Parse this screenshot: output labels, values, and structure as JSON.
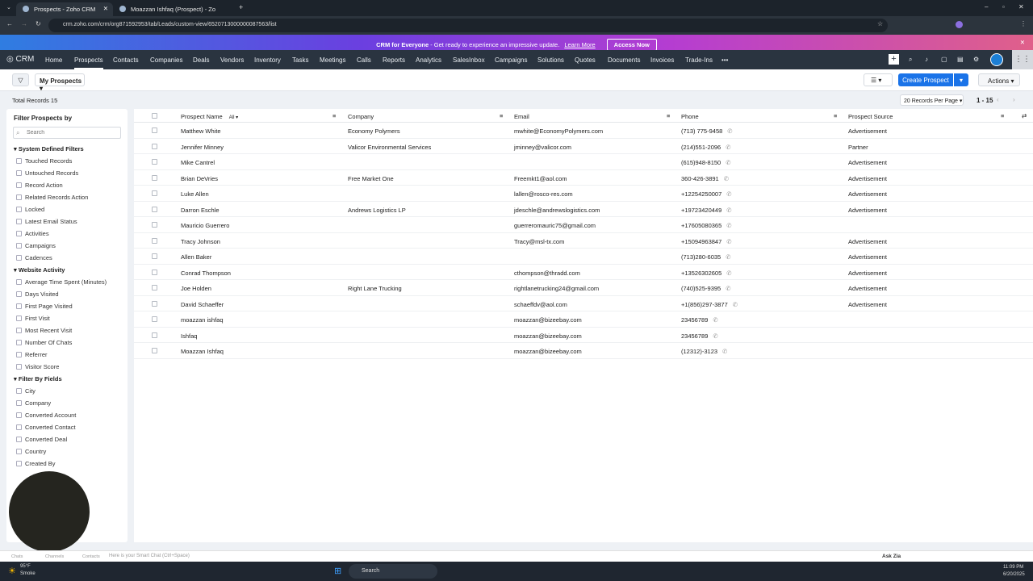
{
  "browser": {
    "tabs": [
      {
        "title": "Prospects - Zoho CRM",
        "active": true
      },
      {
        "title": "Moazzan Ishfaq (Prospect) - Zo",
        "active": false
      }
    ],
    "url": "crm.zoho.com/crm/org871592953/tab/Leads/custom-view/6520713000000087563/list"
  },
  "banner": {
    "title": "CRM for Everyone",
    "text": " - Get ready to experience an impressive update.",
    "link": "Learn More",
    "button": "Access Now"
  },
  "nav": {
    "logo": "CRM",
    "items": [
      "Home",
      "Prospects",
      "Contacts",
      "Companies",
      "Deals",
      "Vendors",
      "Inventory",
      "Tasks",
      "Meetings",
      "Calls",
      "Reports",
      "Analytics",
      "SalesInbox",
      "Campaigns",
      "Solutions",
      "Quotes",
      "Documents",
      "Invoices",
      "Trade-Ins",
      "•••"
    ],
    "active": "Prospects"
  },
  "toolbar": {
    "view": "My Prospects",
    "create": "Create Prospect",
    "actions": "Actions",
    "total": "Total Records 15",
    "per_page": "20 Records Per Page",
    "range": "1 - 15"
  },
  "sidebar": {
    "title": "Filter Prospects by",
    "search_placeholder": "Search",
    "sections": [
      {
        "title": "System Defined Filters",
        "items": [
          "Touched Records",
          "Untouched Records",
          "Record Action",
          "Related Records Action",
          "Locked",
          "Latest Email Status",
          "Activities",
          "Campaigns",
          "Cadences"
        ]
      },
      {
        "title": "Website Activity",
        "items": [
          "Average Time Spent (Minutes)",
          "Days Visited",
          "First Page Visited",
          "First Visit",
          "Most Recent Visit",
          "Number Of Chats",
          "Referrer",
          "Visitor Score"
        ]
      },
      {
        "title": "Filter By Fields",
        "items": [
          "City",
          "Company",
          "Converted Account",
          "Converted Contact",
          "Converted Deal",
          "Country",
          "Created By"
        ]
      }
    ]
  },
  "table": {
    "columns": [
      "Prospect Name",
      "Company",
      "Email",
      "Phone",
      "Prospect Source"
    ],
    "name_filter": "All",
    "rows": [
      [
        "Matthew White",
        "Economy Polymers",
        "mwhite@EconomyPolymers.com",
        "(713) 775-9458",
        "Advertisement"
      ],
      [
        "Jennifer Minney",
        "Valicor Environmental Services",
        "jminney@valicor.com",
        "(214)551-2096",
        "Partner"
      ],
      [
        "Mike Cantrel",
        "",
        "",
        "(615)948-8150",
        "Advertisement"
      ],
      [
        "Brian DeVries",
        "Free Market One",
        "Freemkt1@aol.com",
        "360-426-3891",
        "Advertisement"
      ],
      [
        "Luke Allen",
        "",
        "lallen@rosco-res.com",
        "+12254250007",
        "Advertisement"
      ],
      [
        "Darron Eschle",
        "Andrews Logistics LP",
        "jdeschle@andrewslogistics.com",
        "+19723420449",
        "Advertisement"
      ],
      [
        "Mauricio Guerrero",
        "",
        "guerreromauric75@gmail.com",
        "+17605080365",
        ""
      ],
      [
        "Tracy Johnson",
        "",
        "Tracy@msl-tx.com",
        "+15094963847",
        "Advertisement"
      ],
      [
        "Allen Baker",
        "",
        "",
        "(713)280-6035",
        "Advertisement"
      ],
      [
        "Conrad Thompson",
        "",
        "cthompson@thradd.com",
        "+13526302605",
        "Advertisement"
      ],
      [
        "Joe Holden",
        "Right Lane Trucking",
        "rightlanetrucking24@gmail.com",
        "(740)525-9395",
        "Advertisement"
      ],
      [
        "David Schaeffer",
        "",
        "schaeffdv@aol.com",
        "+1(856)297-3877",
        "Advertisement"
      ],
      [
        "moazzan ishfaq",
        "",
        "moazzan@bizeebay.com",
        "23456789",
        ""
      ],
      [
        "Ishfaq",
        "",
        "moazzan@bizeebay.com",
        "23456789",
        ""
      ],
      [
        "Moazzan Ishfaq",
        "",
        "moazzan@bizeebay.com",
        "(12312)-3123",
        ""
      ]
    ]
  },
  "chatbar": {
    "placeholder": "Here is your Smart Chat (Ctrl+Space)",
    "items": [
      "Chats",
      "Channels",
      "Contacts"
    ],
    "zia": "Ask Zia"
  },
  "taskbar": {
    "weather_temp": "95°F",
    "weather_text": "Smoke",
    "search": "Search",
    "time": "11:09 PM",
    "date": "6/20/2025"
  },
  "colors": {
    "accent": "#1a73e8",
    "nav_bg": "#2a3440"
  }
}
